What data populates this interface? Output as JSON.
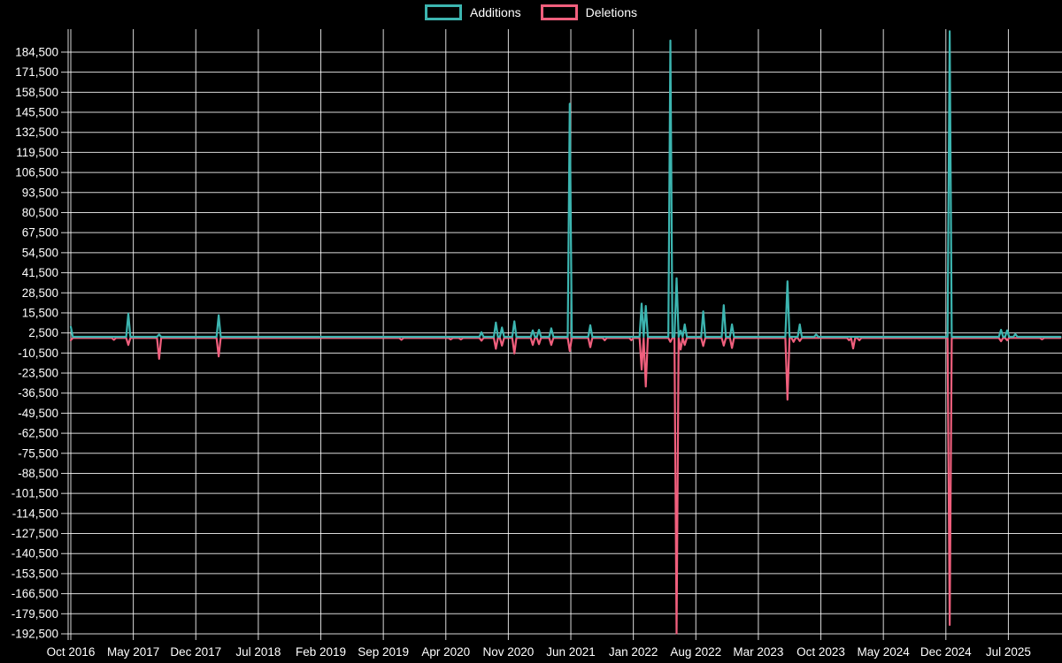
{
  "legend": {
    "items": [
      {
        "label": "Additions",
        "color": "#3cb5b0"
      },
      {
        "label": "Deletions",
        "color": "#f05f7d"
      }
    ]
  },
  "chart_data": {
    "type": "line",
    "title": "",
    "background": "#000000",
    "grid_color": "rgba(255,255,255,0.85)",
    "text_color": "#ffffff",
    "legend_position": "top-center",
    "x_axis": {
      "labels": [
        "Oct 2016",
        "May 2017",
        "Dec 2017",
        "Jul 2018",
        "Feb 2019",
        "Sep 2019",
        "Apr 2020",
        "Nov 2020",
        "Jun 2021",
        "Jan 2022",
        "Aug 2022",
        "Mar 2023",
        "Oct 2023",
        "May 2024",
        "Dec 2024",
        "Jul 2025"
      ],
      "months_per_gridline": 7,
      "start": "2016-10-01",
      "end": "2025-12-25"
    },
    "y_axis": {
      "max": 184500,
      "min": -192500,
      "step": 13000,
      "ticks": [
        "184,500",
        "171,500",
        "158,500",
        "145,500",
        "132,500",
        "119,500",
        "106,500",
        "93,500",
        "80,500",
        "67,500",
        "54,500",
        "41,500",
        "28,500",
        "15,500",
        "2,500",
        "-10,500",
        "-23,500",
        "-36,500",
        "-49,500",
        "-62,500",
        "-75,500",
        "-88,500",
        "-101,500",
        "-114,500",
        "-127,500",
        "-140,500",
        "-153,500",
        "-166,500",
        "-179,500",
        "-192,500"
      ]
    },
    "series_names": [
      "Additions",
      "Deletions"
    ],
    "baseline_value": 0,
    "sample_interval_days": 7,
    "points": [
      {
        "date": "2016-10-01",
        "additions": 6500,
        "deletions": -1500
      },
      {
        "date": "2017-02-24",
        "additions": 0,
        "deletions": -1200
      },
      {
        "date": "2017-04-18",
        "additions": 15000,
        "deletions": -4500
      },
      {
        "date": "2017-08-01",
        "additions": 1500,
        "deletions": -13500
      },
      {
        "date": "2018-02-16",
        "additions": 14000,
        "deletions": -12000
      },
      {
        "date": "2019-11-01",
        "additions": 0,
        "deletions": -1200
      },
      {
        "date": "2020-04-16",
        "additions": 0,
        "deletions": -1000
      },
      {
        "date": "2020-05-22",
        "additions": 0,
        "deletions": -1000
      },
      {
        "date": "2020-08-04",
        "additions": 3000,
        "deletions": -1800
      },
      {
        "date": "2020-09-19",
        "additions": 9200,
        "deletions": -7000
      },
      {
        "date": "2020-10-13",
        "additions": 6000,
        "deletions": -5000
      },
      {
        "date": "2020-11-19",
        "additions": 10000,
        "deletions": -10000
      },
      {
        "date": "2021-01-22",
        "additions": 4200,
        "deletions": -4500
      },
      {
        "date": "2021-02-16",
        "additions": 4500,
        "deletions": -4000
      },
      {
        "date": "2021-03-25",
        "additions": 5500,
        "deletions": -4500
      },
      {
        "date": "2021-05-28",
        "additions": 151000,
        "deletions": -8500
      },
      {
        "date": "2021-08-10",
        "additions": 7500,
        "deletions": -6000
      },
      {
        "date": "2021-09-28",
        "additions": 0,
        "deletions": -1500
      },
      {
        "date": "2021-12-22",
        "additions": 0,
        "deletions": -1500
      },
      {
        "date": "2022-01-28",
        "additions": 21500,
        "deletions": -20500
      },
      {
        "date": "2022-02-10",
        "additions": 20000,
        "deletions": -31500
      },
      {
        "date": "2022-05-10",
        "additions": 192000,
        "deletions": -2500
      },
      {
        "date": "2022-05-28",
        "additions": 38000,
        "deletions": -191500
      },
      {
        "date": "2022-06-13",
        "additions": 4000,
        "deletions": -7500
      },
      {
        "date": "2022-06-28",
        "additions": 8000,
        "deletions": -4500
      },
      {
        "date": "2022-08-25",
        "additions": 16500,
        "deletions": -5200
      },
      {
        "date": "2022-11-04",
        "additions": 20500,
        "deletions": -5000
      },
      {
        "date": "2022-12-04",
        "additions": 8000,
        "deletions": -6500
      },
      {
        "date": "2023-06-07",
        "additions": 36000,
        "deletions": -40000
      },
      {
        "date": "2023-07-01",
        "additions": 0,
        "deletions": -2500
      },
      {
        "date": "2023-07-25",
        "additions": 8000,
        "deletions": -2000
      },
      {
        "date": "2023-09-19",
        "additions": 1500,
        "deletions": 0
      },
      {
        "date": "2024-01-04",
        "additions": 0,
        "deletions": -1500
      },
      {
        "date": "2024-01-22",
        "additions": 0,
        "deletions": -6800
      },
      {
        "date": "2024-02-10",
        "additions": 0,
        "deletions": -1500
      },
      {
        "date": "2024-12-13",
        "additions": 198000,
        "deletions": -186000
      },
      {
        "date": "2025-06-04",
        "additions": 4500,
        "deletions": -2200
      },
      {
        "date": "2025-06-28",
        "additions": 4200,
        "deletions": -1500
      },
      {
        "date": "2025-07-25",
        "additions": 1800,
        "deletions": 0
      },
      {
        "date": "2025-10-25",
        "additions": 0,
        "deletions": -900
      }
    ]
  }
}
